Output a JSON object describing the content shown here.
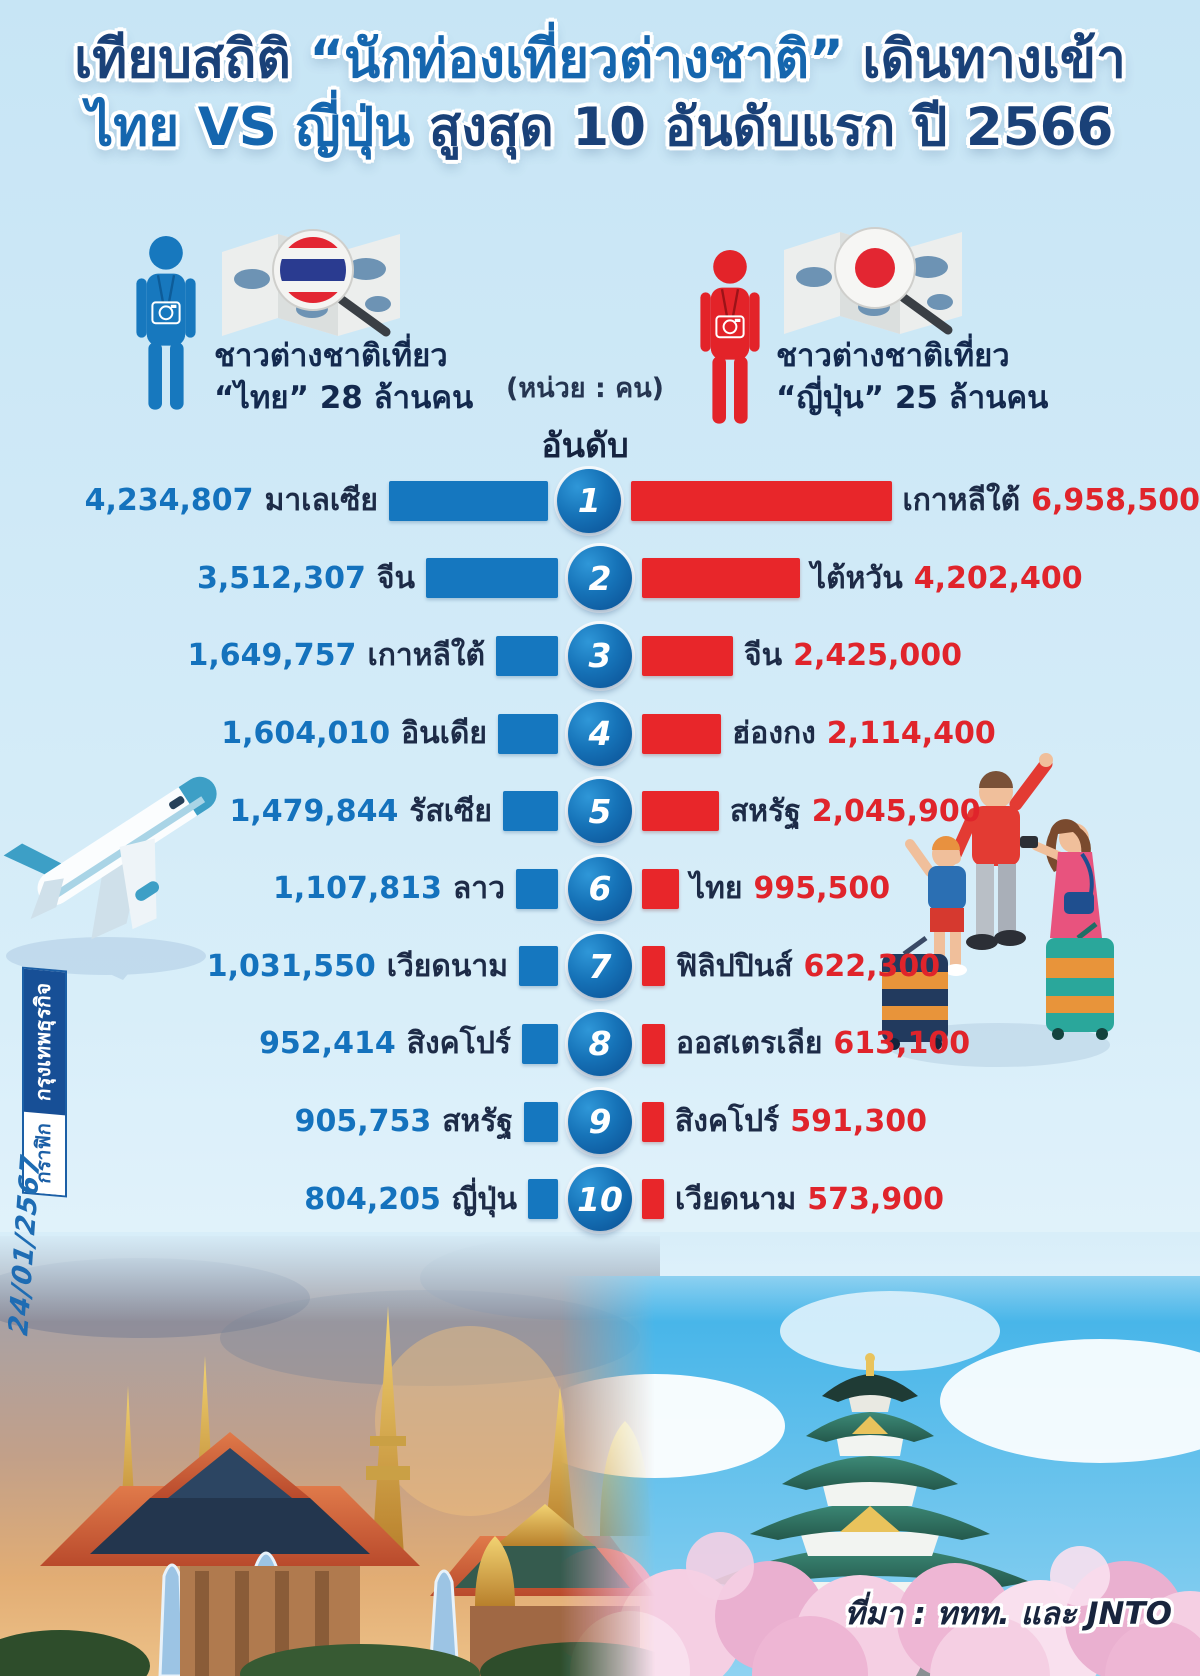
{
  "title": {
    "l1a": "เทียบสถิติ ",
    "l1b": "“นักท่องเที่ยวต่างชาติ”",
    "l1c": " เดินทางเข้า",
    "l2a": "ไทย VS ญี่ปุ่น",
    "l2b": " สูงสุด 10 อันดับแรก ปี 2566"
  },
  "legend_thailand": {
    "line1": "ชาวต่างชาติเที่ยว",
    "line2": "“ไทย” 28 ล้านคน"
  },
  "legend_japan": {
    "line1": "ชาวต่างชาติเที่ยว",
    "line2": "“ญี่ปุ่น” 25 ล้านคน"
  },
  "axis": {
    "unit": "(หน่วย : คน)",
    "rank_header": "อันดับ"
  },
  "rows": [
    {
      "rank": "1",
      "left_value": "4,234,807",
      "left_label": "มาเลเซีย",
      "right_label": "เกาหลีใต้",
      "right_value": "6,958,500"
    },
    {
      "rank": "2",
      "left_value": "3,512,307",
      "left_label": "จีน",
      "right_label": "ไต้หวัน",
      "right_value": "4,202,400"
    },
    {
      "rank": "3",
      "left_value": "1,649,757",
      "left_label": "เกาหลีใต้",
      "right_label": "จีน",
      "right_value": "2,425,000"
    },
    {
      "rank": "4",
      "left_value": "1,604,010",
      "left_label": "อินเดีย",
      "right_label": "ฮ่องกง",
      "right_value": "2,114,400"
    },
    {
      "rank": "5",
      "left_value": "1,479,844",
      "left_label": "รัสเซีย",
      "right_label": "สหรัฐ",
      "right_value": "2,045,900"
    },
    {
      "rank": "6",
      "left_value": "1,107,813",
      "left_label": "ลาว",
      "right_label": "ไทย",
      "right_value": "995,500"
    },
    {
      "rank": "7",
      "left_value": "1,031,550",
      "left_label": "เวียดนาม",
      "right_label": "ฟิลิปปินส์",
      "right_value": "622,300"
    },
    {
      "rank": "8",
      "left_value": "952,414",
      "left_label": "สิงคโปร์",
      "right_label": "ออสเตรเลีย",
      "right_value": "613,100"
    },
    {
      "rank": "9",
      "left_value": "905,753",
      "left_label": "สหรัฐ",
      "right_label": "สิงคโปร์",
      "right_value": "591,300"
    },
    {
      "rank": "10",
      "left_value": "804,205",
      "left_label": "ญี่ปุ่น",
      "right_label": "เวียดนาม",
      "right_value": "573,900"
    }
  ],
  "source": {
    "text": "ที่มา : ททท. และ JNTO"
  },
  "sidebar": {
    "credit_label": "กราฟิก",
    "brand": "กรุงเทพธุรกิจ",
    "date": "24/01/2567"
  },
  "colors": {
    "thailand_bar": "#1577bf",
    "japan_bar": "#e8262a",
    "thailand_value_text": "#1472bd",
    "japan_value_text": "#e0242b",
    "title_navy": "#1a4178",
    "title_highlight": "#1566ae",
    "background": "#cfe9f7"
  },
  "chart_data": {
    "type": "bar",
    "title": "เทียบสถิติ “นักท่องเที่ยวต่างชาติ” เดินทางเข้า ไทย VS ญี่ปุ่น สูงสุด 10 อันดับแรก ปี 2566",
    "unit": "คน",
    "orientation": "horizontal-mirrored",
    "categories": [
      1,
      2,
      3,
      4,
      5,
      6,
      7,
      8,
      9,
      10
    ],
    "series": [
      {
        "name": "ชาวต่างชาติเที่ยว “ไทย” 28 ล้านคน",
        "labels": [
          "มาเลเซีย",
          "จีน",
          "เกาหลีใต้",
          "อินเดีย",
          "รัสเซีย",
          "ลาว",
          "เวียดนาม",
          "สิงคโปร์",
          "สหรัฐ",
          "ญี่ปุ่น"
        ],
        "values": [
          4234807,
          3512307,
          1649757,
          1604010,
          1479844,
          1107813,
          1031550,
          952414,
          905753,
          804205
        ],
        "color": "#1577bf"
      },
      {
        "name": "ชาวต่างชาติเที่ยว “ญี่ปุ่น” 25 ล้านคน",
        "labels": [
          "เกาหลีใต้",
          "ไต้หวัน",
          "จีน",
          "ฮ่องกง",
          "สหรัฐ",
          "ไทย",
          "ฟิลิปปินส์",
          "ออสเตรเลีย",
          "สิงคโปร์",
          "เวียดนาม"
        ],
        "values": [
          6958500,
          4202400,
          2425000,
          2114400,
          2045900,
          995500,
          622300,
          613100,
          591300,
          573900
        ],
        "color": "#e8262a"
      }
    ],
    "legend_position": "top",
    "grid": false,
    "source": "ททท. และ JNTO"
  }
}
